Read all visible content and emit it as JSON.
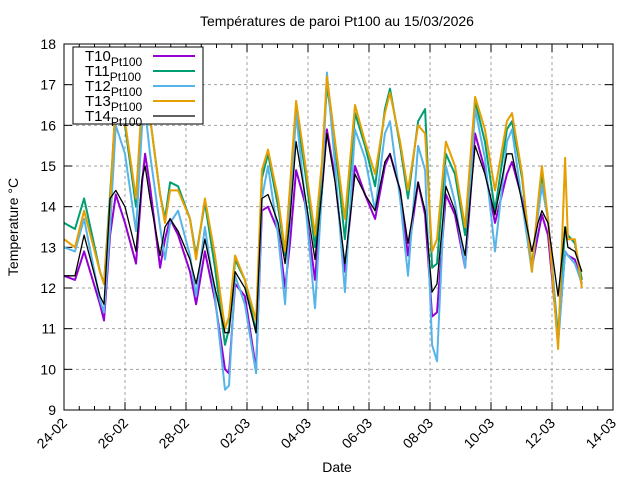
{
  "chart_data": {
    "type": "line",
    "title": "Températures de paroi Pt100 au 15/03/2026",
    "xlabel": "Date",
    "ylabel": "Temperature °C",
    "x_unit": "days since 24-02",
    "xlim": [
      0,
      18
    ],
    "ylim": [
      9,
      18
    ],
    "yticks": [
      9,
      10,
      11,
      12,
      13,
      14,
      15,
      16,
      17,
      18
    ],
    "xticks": [
      {
        "value": 0,
        "label": "24-02"
      },
      {
        "value": 2,
        "label": "26-02"
      },
      {
        "value": 4,
        "label": "28-02"
      },
      {
        "value": 6,
        "label": "02-03"
      },
      {
        "value": 8,
        "label": "04-03"
      },
      {
        "value": 10,
        "label": "06-03"
      },
      {
        "value": 12,
        "label": "08-03"
      },
      {
        "value": 14,
        "label": "10-03"
      },
      {
        "value": 16,
        "label": "12-03"
      },
      {
        "value": 18,
        "label": "14-03"
      }
    ],
    "grid": true,
    "legend_position": "top-left",
    "x": [
      0,
      0.36,
      0.66,
      1.18,
      1.31,
      1.51,
      1.7,
      2.0,
      2.36,
      2.56,
      2.66,
      2.82,
      3.15,
      3.31,
      3.48,
      3.74,
      4.13,
      4.33,
      4.62,
      4.95,
      5.28,
      5.41,
      5.61,
      5.93,
      6.3,
      6.49,
      6.69,
      7.02,
      7.25,
      7.41,
      7.61,
      7.9,
      8.23,
      8.46,
      8.62,
      8.89,
      9.21,
      9.54,
      9.87,
      10.2,
      10.52,
      10.69,
      11.02,
      11.28,
      11.61,
      11.84,
      12.07,
      12.23,
      12.52,
      12.82,
      13.15,
      13.48,
      13.8,
      14.13,
      14.52,
      14.69,
      15.02,
      15.34,
      15.54,
      15.67,
      15.87,
      16.2,
      16.43,
      16.52,
      16.75,
      16.98
    ],
    "series": [
      {
        "name": "T10",
        "sub": "Pt100",
        "color": "#9400d3",
        "width": 2,
        "values": [
          12.3,
          12.2,
          12.9,
          11.6,
          11.2,
          13.3,
          14.3,
          13.6,
          12.6,
          14.6,
          15.3,
          14.5,
          12.5,
          13.2,
          13.7,
          13.3,
          12.4,
          11.6,
          12.9,
          11.7,
          10.0,
          9.9,
          12.1,
          11.8,
          10.0,
          13.9,
          14.0,
          13.4,
          12.0,
          13.1,
          14.9,
          14.1,
          12.2,
          14.4,
          15.9,
          14.7,
          12.4,
          15.0,
          14.3,
          13.7,
          15.0,
          15.3,
          14.4,
          12.8,
          14.6,
          13.8,
          11.3,
          11.4,
          14.3,
          13.8,
          12.5,
          15.8,
          14.9,
          13.6,
          14.8,
          15.1,
          14.2,
          12.5,
          13.3,
          13.8,
          13.3,
          10.7,
          12.9,
          12.8,
          12.7,
          12.1
        ]
      },
      {
        "name": "T11",
        "sub": "Pt100",
        "color": "#009e73",
        "width": 2,
        "values": [
          13.6,
          13.45,
          14.2,
          12.4,
          12.1,
          14.3,
          16.5,
          16.0,
          14.0,
          16.6,
          16.9,
          16.2,
          14.3,
          13.7,
          14.6,
          14.5,
          13.7,
          12.8,
          14.1,
          12.5,
          10.6,
          11.0,
          12.7,
          12.2,
          10.9,
          14.7,
          15.3,
          14.0,
          12.8,
          14.3,
          16.4,
          14.9,
          13.0,
          14.9,
          17.0,
          15.5,
          13.2,
          16.3,
          15.5,
          14.5,
          16.4,
          16.9,
          15.5,
          14.2,
          16.1,
          16.4,
          12.5,
          12.6,
          15.3,
          14.8,
          13.3,
          16.6,
          15.6,
          13.9,
          15.9,
          16.1,
          14.7,
          12.5,
          14.0,
          14.8,
          13.7,
          10.8,
          13.5,
          13.3,
          13.1,
          12.2
        ]
      },
      {
        "name": "T12",
        "sub": "Pt100",
        "color": "#56b4e9",
        "width": 2,
        "values": [
          13.0,
          12.9,
          13.7,
          11.7,
          11.4,
          13.5,
          16.0,
          15.3,
          13.4,
          16.0,
          16.4,
          15.3,
          13.5,
          12.7,
          13.6,
          13.9,
          12.8,
          11.8,
          13.5,
          11.8,
          9.5,
          9.6,
          12.3,
          11.6,
          9.9,
          14.2,
          15.0,
          13.3,
          11.6,
          13.8,
          16.3,
          14.2,
          11.5,
          14.4,
          17.3,
          15.0,
          11.9,
          15.9,
          15.2,
          13.9,
          15.8,
          16.1,
          14.2,
          12.3,
          15.5,
          14.9,
          10.6,
          10.2,
          15.0,
          14.1,
          12.5,
          16.4,
          15.2,
          12.9,
          15.6,
          15.9,
          14.1,
          12.4,
          13.8,
          14.5,
          13.7,
          10.6,
          12.9,
          12.8,
          12.6,
          12.1
        ]
      },
      {
        "name": "T13",
        "sub": "Pt100",
        "color": "#e69f00",
        "width": 2,
        "values": [
          13.2,
          13.0,
          13.9,
          12.4,
          12.1,
          14.1,
          16.7,
          16.1,
          14.2,
          16.7,
          17.1,
          16.2,
          14.3,
          13.6,
          14.4,
          14.4,
          13.7,
          12.7,
          14.2,
          12.8,
          11.0,
          11.3,
          12.8,
          12.2,
          11.2,
          14.9,
          15.4,
          14.2,
          12.9,
          14.5,
          16.6,
          15.1,
          13.3,
          15.1,
          17.2,
          15.6,
          13.7,
          16.5,
          15.6,
          14.8,
          16.3,
          16.8,
          15.6,
          14.4,
          16.0,
          15.8,
          12.9,
          13.2,
          15.6,
          15.0,
          13.5,
          16.7,
          15.9,
          14.4,
          16.1,
          16.3,
          14.8,
          12.4,
          14.1,
          15.0,
          13.7,
          10.5,
          15.2,
          13.2,
          13.2,
          12.0
        ]
      },
      {
        "name": "T14",
        "sub": "Pt100",
        "color": "#000000",
        "width": 1.3,
        "values": [
          12.3,
          12.3,
          13.3,
          11.8,
          11.6,
          14.2,
          14.4,
          14.0,
          12.9,
          14.7,
          15.0,
          14.2,
          12.8,
          13.5,
          13.7,
          13.4,
          12.7,
          12.1,
          13.2,
          12.0,
          10.9,
          10.9,
          12.4,
          12.0,
          10.9,
          14.2,
          14.3,
          13.6,
          12.6,
          13.7,
          15.6,
          14.3,
          12.7,
          14.4,
          15.8,
          14.6,
          12.6,
          14.8,
          14.3,
          13.9,
          15.1,
          15.3,
          14.4,
          13.1,
          14.6,
          13.9,
          11.9,
          12.1,
          14.5,
          13.9,
          12.8,
          15.5,
          14.8,
          13.8,
          15.3,
          15.3,
          14.1,
          12.9,
          13.6,
          13.9,
          13.6,
          11.8,
          13.5,
          13.0,
          12.9,
          12.4
        ]
      }
    ]
  }
}
